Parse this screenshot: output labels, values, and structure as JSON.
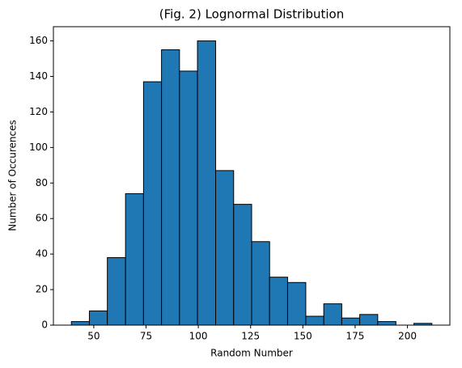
{
  "chart_data": {
    "type": "histogram",
    "title": "(Fig. 2) Lognormal Distribution",
    "x_label": "Random Number",
    "y_label": "Number of Occurences",
    "bins": [
      39.3,
      47.9,
      56.5,
      65.2,
      73.8,
      82.4,
      91.0,
      99.6,
      108.3,
      116.9,
      125.5,
      134.1,
      142.7,
      151.4,
      160.0,
      168.6,
      177.2,
      185.8,
      194.5,
      203.1,
      211.7
    ],
    "values": [
      2,
      8,
      38,
      74,
      137,
      155,
      143,
      160,
      87,
      68,
      47,
      27,
      24,
      5,
      12,
      4,
      6,
      2,
      0,
      1
    ],
    "color": "#1f77b4",
    "edgecolor": "#000000",
    "xlim": [
      30.7,
      220.3
    ],
    "ylim": [
      0,
      168
    ],
    "xticks": [
      50,
      75,
      100,
      125,
      150,
      175,
      200
    ],
    "yticks": [
      0,
      20,
      40,
      60,
      80,
      100,
      120,
      140,
      160
    ]
  }
}
